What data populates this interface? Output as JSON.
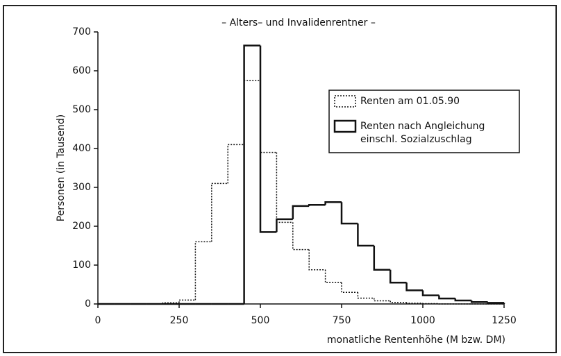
{
  "chart_data": {
    "type": "histogram",
    "title": "– Alters– und Invalidenrentner –",
    "xlabel": "monatliche Rentenhöhe (M bzw. DM)",
    "ylabel": "Personen (in Tausend)",
    "bins": [
      0,
      50,
      100,
      150,
      200,
      250,
      300,
      350,
      400,
      450,
      500,
      550,
      600,
      650,
      700,
      750,
      800,
      850,
      900,
      950,
      1000,
      1050,
      1100,
      1150,
      1200,
      1250
    ],
    "series": [
      {
        "name": "Renten am 01.05.90",
        "color": "#111111",
        "style": "dotted",
        "values": [
          0,
          0,
          0,
          0,
          3,
          10,
          160,
          310,
          410,
          575,
          390,
          210,
          140,
          88,
          55,
          30,
          15,
          8,
          4,
          2,
          1,
          0,
          0,
          0,
          0
        ]
      },
      {
        "name": "Renten nach Angleichung einschl. Sozialzuschlag",
        "color": "#111111",
        "style": "solid",
        "values": [
          0,
          0,
          0,
          0,
          0,
          0,
          0,
          0,
          0,
          665,
          185,
          218,
          252,
          255,
          262,
          207,
          150,
          88,
          55,
          35,
          22,
          14,
          9,
          5,
          3
        ]
      }
    ],
    "xlim": [
      0,
      1250
    ],
    "xticks": [
      0,
      250,
      500,
      750,
      1000,
      1250
    ],
    "ylim": [
      0,
      700
    ],
    "yticks": [
      0,
      100,
      200,
      300,
      400,
      500,
      600,
      700
    ]
  }
}
